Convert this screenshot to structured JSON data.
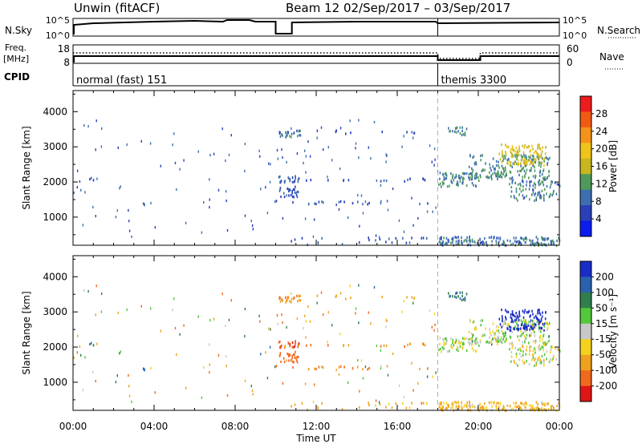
{
  "header": {
    "title": "Unwin (fitACF)",
    "beam_range": "Beam 12  02/Sep/2017 – 03/Sep/2017"
  },
  "noise_panel": {
    "left_label": "N.Sky",
    "left_ticks": [
      "10^5",
      "10^0"
    ],
    "right_ticks": [
      "10^5",
      "10^0"
    ],
    "right_label": "N.Search"
  },
  "freq_panel": {
    "left_label_1": "Freq.",
    "left_label_2": "[MHz]",
    "left_ticks": [
      "18",
      "8"
    ],
    "right_ticks": [
      "60",
      "0"
    ],
    "right_label": "Nave"
  },
  "cpid_panel": {
    "label": "CPID",
    "segments": [
      {
        "label": "normal (fast) 151",
        "start_hour": 0
      },
      {
        "label": "themis 3300",
        "start_hour": 18
      }
    ]
  },
  "x_axis": {
    "label": "Time UT",
    "ticks": [
      "00:00",
      "04:00",
      "08:00",
      "12:00",
      "16:00",
      "20:00",
      "00:00"
    ]
  },
  "power_panel": {
    "ylabel": "Slant Range [km]",
    "yticks": [
      "4000",
      "3000",
      "2000",
      "1000"
    ],
    "colorbar_label": "Power [dB]",
    "colorbar_ticks": [
      "28",
      "24",
      "20",
      "16",
      "12",
      "8",
      "4"
    ],
    "colorbar_colors": [
      "#ee1c1c",
      "#f25a13",
      "#f5921a",
      "#f0c419",
      "#c8b61e",
      "#4e9a5a",
      "#3d6fb0",
      "#2a3fb8",
      "#0b1cf0"
    ]
  },
  "velocity_panel": {
    "ylabel": "Slant Range [km]",
    "yticks": [
      "4000",
      "3000",
      "2000",
      "1000"
    ],
    "colorbar_label": "Velocity [m s⁻¹]",
    "colorbar_ticks": [
      "200",
      "100",
      "50",
      "15",
      "-15",
      "-50",
      "-100",
      "-200"
    ],
    "colorbar_colors": [
      "#1a2cc8",
      "#2a62b0",
      "#2f7f4d",
      "#52c83a",
      "#c8c8c8",
      "#f6d21e",
      "#f0a21e",
      "#f06a1e",
      "#e01515"
    ]
  },
  "chart_data": {
    "type": "heatmap",
    "x_unit": "hours UT",
    "xlim": [
      0,
      24
    ],
    "ylim": [
      200,
      4600
    ],
    "mode_change_hour": 18,
    "scatter_patches": [
      {
        "t0": 10.1,
        "t1": 11.2,
        "r0": 3300,
        "r1": 3500,
        "density": 0.5,
        "power": 8,
        "vel": -60
      },
      {
        "t0": 10.1,
        "t1": 11.2,
        "r0": 2000,
        "r1": 2200,
        "density": 0.5,
        "power": 6,
        "vel": -150
      },
      {
        "t0": 10.1,
        "t1": 11.2,
        "r0": 1600,
        "r1": 1900,
        "density": 0.4,
        "power": 6,
        "vel": -120
      },
      {
        "t0": 9.5,
        "t1": 17.8,
        "r0": 1400,
        "r1": 1500,
        "density": 0.18,
        "power": 5,
        "vel": -80
      },
      {
        "t0": 11.0,
        "t1": 17.5,
        "r0": 2050,
        "r1": 2150,
        "density": 0.15,
        "power": 5,
        "vel": -60
      },
      {
        "t0": 11.0,
        "t1": 17.0,
        "r0": 3400,
        "r1": 3500,
        "density": 0.12,
        "power": 5,
        "vel": -40
      },
      {
        "t0": 10.0,
        "t1": 17.8,
        "r0": 250,
        "r1": 450,
        "density": 0.08,
        "power": 5,
        "vel": -50
      },
      {
        "t0": 0.5,
        "t1": 1.0,
        "r0": 2050,
        "r1": 2150,
        "density": 0.4,
        "power": 6,
        "vel": 80
      },
      {
        "t0": 3.2,
        "t1": 3.5,
        "r0": 1350,
        "r1": 1500,
        "density": 0.4,
        "power": 6,
        "vel": 120
      },
      {
        "t0": 18.0,
        "t1": 24.0,
        "r0": 220,
        "r1": 480,
        "density": 0.55,
        "power": 8,
        "vel": -30
      },
      {
        "t0": 18.0,
        "t1": 20.0,
        "r0": 1900,
        "r1": 2300,
        "density": 0.45,
        "power": 9,
        "vel": 0
      },
      {
        "t0": 19.5,
        "t1": 23.5,
        "r0": 2100,
        "r1": 2800,
        "density": 0.35,
        "power": 10,
        "vel": 5
      },
      {
        "t0": 21.0,
        "t1": 23.3,
        "r0": 2500,
        "r1": 3100,
        "density": 0.4,
        "power": 16,
        "vel": 180
      },
      {
        "t0": 21.5,
        "t1": 24.0,
        "r0": 1500,
        "r1": 2100,
        "density": 0.3,
        "power": 8,
        "vel": -10
      },
      {
        "t0": 18.5,
        "t1": 19.5,
        "r0": 3300,
        "r1": 3600,
        "density": 0.35,
        "power": 8,
        "vel": 60
      }
    ]
  }
}
